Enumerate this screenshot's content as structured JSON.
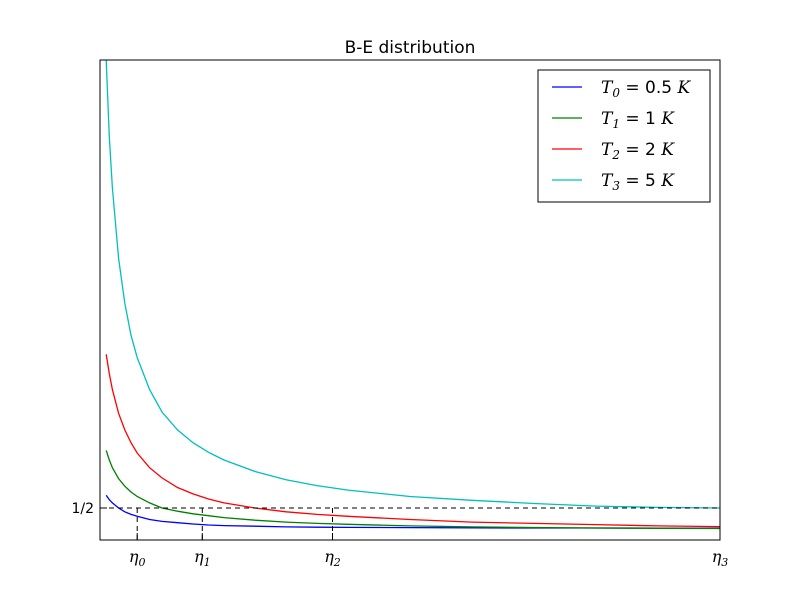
{
  "chart_data": {
    "type": "line",
    "title": "B-E distribution",
    "xlabel": "",
    "ylabel": "",
    "xlim": [
      0,
      10
    ],
    "ylim": [
      0,
      7.5
    ],
    "grid": false,
    "legend_position": "top-right",
    "x_ticks": [
      {
        "value": 0.6,
        "label": "η0",
        "base": "η",
        "sub": "0"
      },
      {
        "value": 1.65,
        "label": "η1",
        "base": "η",
        "sub": "1"
      },
      {
        "value": 3.75,
        "label": "η2",
        "base": "η",
        "sub": "2"
      },
      {
        "value": 10.0,
        "label": "η3",
        "base": "η",
        "sub": "3"
      }
    ],
    "y_ticks": [
      {
        "value": 0.5,
        "label": "1/2"
      }
    ],
    "reference_line": {
      "y": 0.5,
      "style": "dashed",
      "color": "#000000"
    },
    "series": [
      {
        "name": "T0 = 0.5 K",
        "legend": {
          "T": "T",
          "sub": "0",
          "value": "0.5",
          "unit": "K"
        },
        "T": 0.5,
        "color": "#0000ff",
        "x": [
          0.1,
          0.15,
          0.2,
          0.3,
          0.4,
          0.5,
          0.6,
          0.8,
          1.0,
          1.25,
          1.5,
          1.75,
          2.0,
          2.5,
          3.0,
          3.5,
          4.0,
          5.0,
          6.0,
          7.0,
          8.0,
          9.0,
          10.0
        ],
        "y": [
          0.7,
          0.63,
          0.58,
          0.5,
          0.44,
          0.4,
          0.37,
          0.32,
          0.29,
          0.27,
          0.25,
          0.235,
          0.225,
          0.215,
          0.205,
          0.2,
          0.197,
          0.193,
          0.19,
          0.188,
          0.187,
          0.186,
          0.185
        ]
      },
      {
        "name": "T1 = 1 K",
        "legend": {
          "T": "T",
          "sub": "1",
          "value": "1",
          "unit": "K"
        },
        "T": 1,
        "color": "#008000",
        "x": [
          0.1,
          0.15,
          0.2,
          0.3,
          0.4,
          0.5,
          0.6,
          0.8,
          1.0,
          1.25,
          1.5,
          1.75,
          2.0,
          2.5,
          3.0,
          3.5,
          4.0,
          5.0,
          6.0,
          7.0,
          8.0,
          9.0,
          10.0
        ],
        "y": [
          1.4,
          1.25,
          1.13,
          0.96,
          0.84,
          0.75,
          0.68,
          0.58,
          0.5,
          0.45,
          0.41,
          0.38,
          0.35,
          0.31,
          0.28,
          0.26,
          0.245,
          0.22,
          0.205,
          0.195,
          0.188,
          0.183,
          0.18
        ]
      },
      {
        "name": "T2 = 2 K",
        "legend": {
          "T": "T",
          "sub": "2",
          "value": "2",
          "unit": "K"
        },
        "T": 2,
        "color": "#ff0000",
        "x": [
          0.1,
          0.15,
          0.2,
          0.3,
          0.4,
          0.5,
          0.6,
          0.8,
          1.0,
          1.25,
          1.5,
          1.75,
          2.0,
          2.5,
          3.0,
          3.5,
          4.0,
          5.0,
          6.0,
          7.0,
          8.0,
          9.0,
          10.0
        ],
        "y": [
          2.9,
          2.6,
          2.35,
          1.98,
          1.72,
          1.52,
          1.36,
          1.13,
          0.97,
          0.82,
          0.72,
          0.64,
          0.58,
          0.5,
          0.44,
          0.4,
          0.37,
          0.32,
          0.28,
          0.26,
          0.24,
          0.22,
          0.21
        ]
      },
      {
        "name": "T3 = 5 K",
        "legend": {
          "T": "T",
          "sub": "3",
          "value": "5",
          "unit": "K"
        },
        "T": 5,
        "color": "#00bfbf",
        "x": [
          0.1,
          0.15,
          0.2,
          0.3,
          0.4,
          0.5,
          0.6,
          0.8,
          1.0,
          1.25,
          1.5,
          1.75,
          2.0,
          2.5,
          3.0,
          3.5,
          4.0,
          5.0,
          6.0,
          7.0,
          8.0,
          9.0,
          10.0
        ],
        "y": [
          7.5,
          6.3,
          5.5,
          4.4,
          3.7,
          3.2,
          2.85,
          2.35,
          2.0,
          1.72,
          1.52,
          1.37,
          1.25,
          1.07,
          0.94,
          0.85,
          0.78,
          0.68,
          0.62,
          0.57,
          0.53,
          0.51,
          0.5
        ]
      }
    ]
  }
}
